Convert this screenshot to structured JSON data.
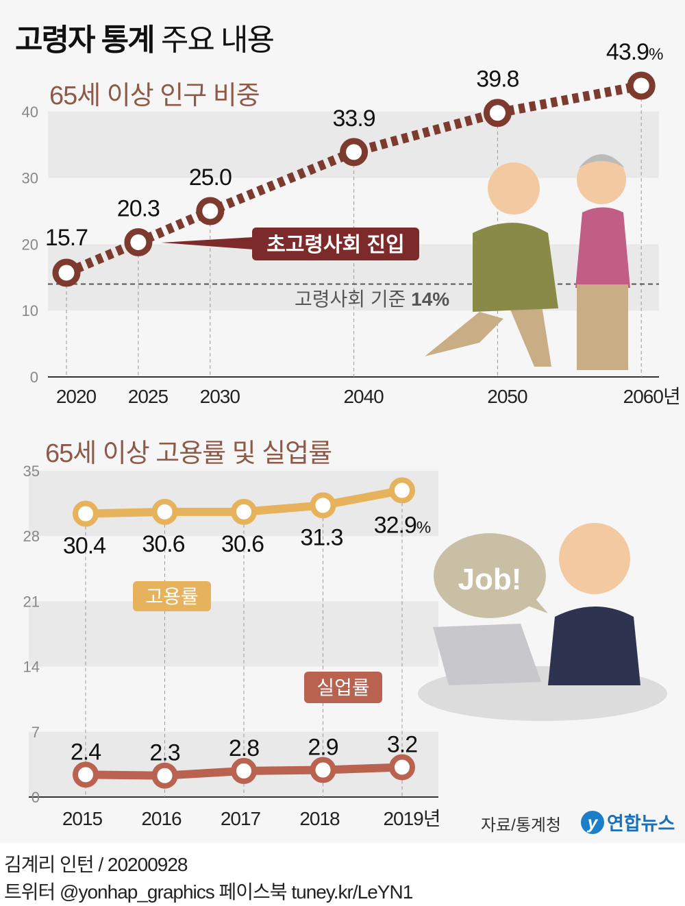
{
  "header": {
    "title_bold": "고령자 통계",
    "title_rest": "주요 내용"
  },
  "colors": {
    "population_line": "#7d3b30",
    "employment": "#e6b25b",
    "unemployment": "#b8624f",
    "subtitle": "#8d5a48"
  },
  "chart_data": [
    {
      "type": "line",
      "title": "65세 이상 인구 비중",
      "categories": [
        "2020",
        "2025",
        "2030",
        "2040",
        "2050",
        "2060년"
      ],
      "x": [
        2020,
        2025,
        2030,
        2040,
        2050,
        2060
      ],
      "values": [
        15.7,
        20.3,
        25.0,
        33.9,
        39.8,
        43.9
      ],
      "data_labels": [
        "15.7",
        "20.3",
        "25.0",
        "33.9",
        "39.8",
        "43.9"
      ],
      "unit": "%",
      "ylim": [
        0,
        40
      ],
      "yticks": [
        "0",
        "10",
        "20",
        "30",
        "40"
      ],
      "grid": "banded",
      "reference_line": {
        "value": 14,
        "label": "고령사회 기준",
        "value_label": "14%"
      },
      "annotation": "초고령사회 진입"
    },
    {
      "type": "line",
      "title": "65세 이상 고용률 및 실업률",
      "categories": [
        "2015",
        "2016",
        "2017",
        "2018",
        "2019년"
      ],
      "unit": "%",
      "ylim": [
        0,
        35
      ],
      "yticks": [
        "0",
        "7",
        "14",
        "21",
        "28",
        "35"
      ],
      "grid": "banded",
      "series": [
        {
          "name": "고용률",
          "values": [
            30.4,
            30.6,
            30.6,
            31.3,
            32.9
          ],
          "labels": [
            "30.4",
            "30.6",
            "30.6",
            "31.3",
            "32.9"
          ]
        },
        {
          "name": "실업률",
          "values": [
            2.4,
            2.3,
            2.8,
            2.9,
            3.2
          ],
          "labels": [
            "2.4",
            "2.3",
            "2.8",
            "2.9",
            "3.2"
          ]
        }
      ]
    }
  ],
  "illustration": {
    "speech_bubble": "Job!"
  },
  "source": "자료/통계청",
  "logo": "연합뉴스",
  "footer": {
    "credit": "김계리 인턴 / 20200928",
    "social": "트위터 @yonhap_graphics  페이스북 tuney.kr/LeYN1"
  }
}
